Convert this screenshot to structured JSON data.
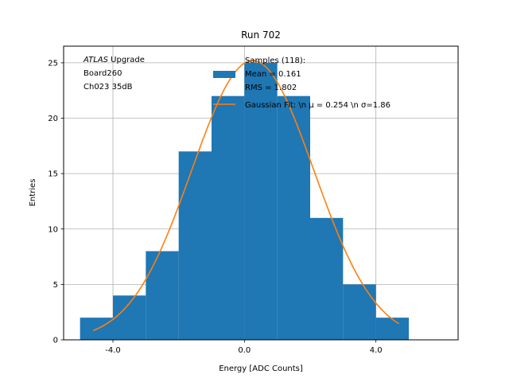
{
  "chart_data": {
    "type": "bar",
    "title": "Run 702",
    "xlabel": "Energy [ADC Counts]",
    "ylabel": "Entries",
    "xlim": [
      -5.5,
      6.5
    ],
    "ylim": [
      0,
      26.5
    ],
    "x_ticks": [
      -4.0,
      0.0,
      4.0
    ],
    "x_tick_labels": [
      "-4.0",
      "0.0",
      "4.0"
    ],
    "y_ticks": [
      0,
      5,
      10,
      15,
      20,
      25
    ],
    "y_tick_labels": [
      "0",
      "5",
      "10",
      "15",
      "20",
      "25"
    ],
    "grid": true,
    "bin_edges": [
      -5,
      -4,
      -3,
      -2,
      -1,
      0,
      1,
      2,
      3,
      4,
      5
    ],
    "counts": [
      2,
      4,
      8,
      17,
      22,
      25,
      22,
      11,
      5,
      2
    ],
    "fit": {
      "mu": 0.254,
      "sigma": 1.86,
      "amplitude": 25.2,
      "x_range": [
        -4.6,
        4.7
      ]
    },
    "annotation_lines": [
      {
        "italic": "ATLAS",
        "rest": " Upgrade"
      },
      {
        "italic": "",
        "rest": " Board260"
      },
      {
        "italic": "",
        "rest": " Ch023 35dB"
      }
    ],
    "legend": {
      "placement": "top-center",
      "hist_label_lines": [
        "Samples (118):",
        " Mean = 0.161",
        " RMS = 1.802"
      ],
      "fit_label": "Gaussian Fit: \\n μ = 0.254 \\n σ=1.86"
    },
    "colors": {
      "bars": "#1f77b4",
      "fit": "#ff7f0e",
      "grid": "#b0b0b0"
    }
  }
}
